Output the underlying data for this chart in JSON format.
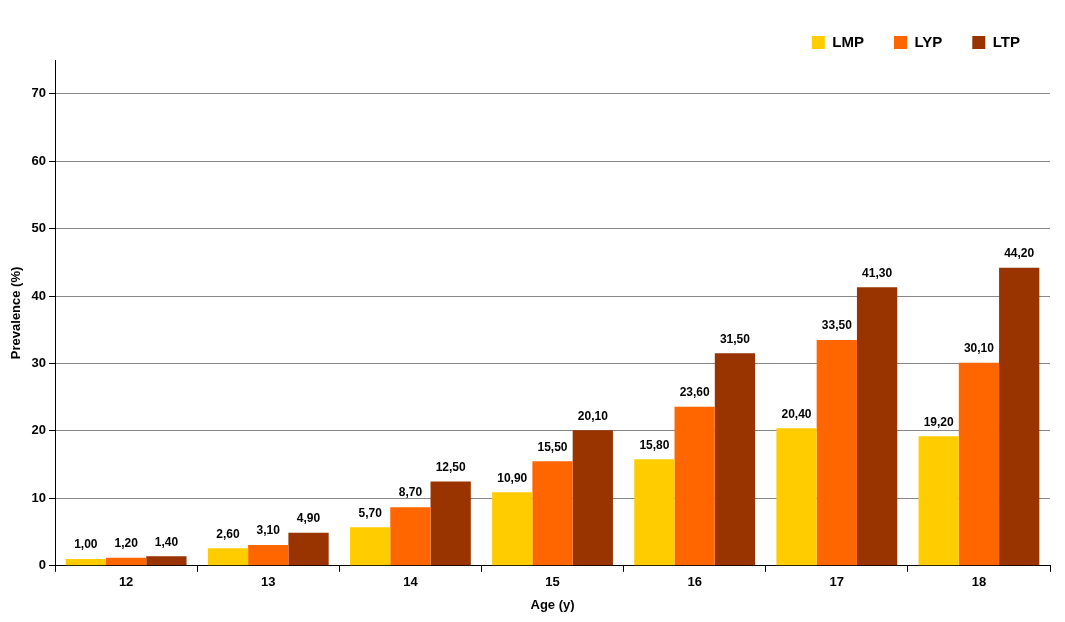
{
  "chart_data": {
    "type": "bar",
    "xlabel": "Age (y)",
    "ylabel": "Prevalence (%)",
    "categories": [
      "12",
      "13",
      "14",
      "15",
      "16",
      "17",
      "18"
    ],
    "series": [
      {
        "name": "LMP",
        "color": "#ffcc00",
        "values": [
          1.0,
          2.6,
          5.7,
          10.9,
          15.8,
          20.4,
          19.2
        ],
        "value_labels": [
          "1,00",
          "2,60",
          "5,70",
          "10,90",
          "15,80",
          "20,40",
          "19,20"
        ]
      },
      {
        "name": "LYP",
        "color": "#ff6600",
        "values": [
          1.2,
          3.1,
          8.7,
          15.5,
          23.6,
          33.5,
          30.1
        ],
        "value_labels": [
          "1,20",
          "3,10",
          "8,70",
          "15,50",
          "23,60",
          "33,50",
          "30,10"
        ]
      },
      {
        "name": "LTP",
        "color": "#993300",
        "values": [
          1.4,
          4.9,
          12.5,
          20.1,
          31.5,
          41.3,
          44.2
        ],
        "value_labels": [
          "1,40",
          "4,90",
          "12,50",
          "20,10",
          "31,50",
          "41,30",
          "44,20"
        ]
      }
    ],
    "ylim": [
      0,
      75
    ],
    "yticks": [
      0,
      10,
      20,
      30,
      40,
      50,
      60,
      70
    ],
    "grid": "y",
    "legend": "top right"
  }
}
